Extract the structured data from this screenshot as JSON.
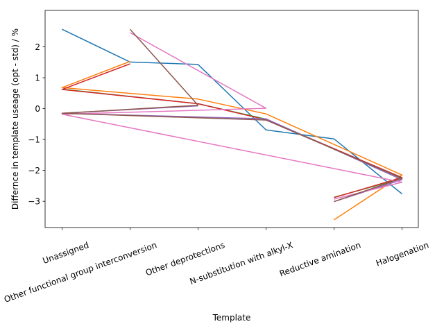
{
  "chart_data": {
    "type": "line",
    "xlabel": "Template",
    "ylabel": "Differnce in template useage (opt - std) / %",
    "categories": [
      "Unassigned",
      "Other functional group interconversion",
      "Other deprotections",
      "N-substitution with alkyl-X",
      "Reductive amination",
      "Halogenation"
    ],
    "ylim": [
      -3.85,
      3.18
    ],
    "yticks": [
      -3,
      -2,
      -1,
      0,
      1,
      2
    ],
    "ytick_labels": [
      "−3",
      "−2",
      "−1",
      "0",
      "1",
      "2"
    ],
    "grid": false,
    "series": [
      {
        "color": "#1f77b4",
        "points": [
          [
            0,
            2.57
          ],
          [
            1,
            1.51
          ],
          [
            2,
            1.43
          ],
          [
            3,
            -0.69
          ],
          [
            4,
            -0.98
          ],
          [
            5,
            -2.76
          ]
        ]
      },
      {
        "color": "#ff7f0e",
        "points": [
          [
            1,
            1.53
          ],
          [
            0,
            0.68
          ],
          [
            2,
            0.31
          ],
          [
            3,
            -0.17
          ],
          [
            5,
            -2.15
          ],
          [
            4,
            -3.6
          ]
        ]
      },
      {
        "color": "#2ca02c",
        "points": [
          [
            0,
            0.63
          ],
          [
            2,
            0.16
          ],
          [
            3,
            -0.34
          ],
          [
            5,
            -2.26
          ],
          [
            4,
            -2.87
          ]
        ]
      },
      {
        "color": "#d62728",
        "points": [
          [
            1,
            1.45
          ],
          [
            0,
            0.62
          ],
          [
            2,
            0.16
          ],
          [
            3,
            -0.36
          ],
          [
            5,
            -2.23
          ],
          [
            4,
            -2.88
          ]
        ]
      },
      {
        "color": "#9467bd",
        "points": [
          [
            2,
            0.09
          ],
          [
            0,
            -0.15
          ],
          [
            3,
            -0.33
          ],
          [
            5,
            -2.3
          ],
          [
            4,
            -3.01
          ]
        ]
      },
      {
        "color": "#e377c2",
        "points": [
          [
            1,
            2.46
          ],
          [
            3,
            0.01
          ],
          [
            0,
            -0.18
          ],
          [
            5,
            -2.38
          ],
          [
            4,
            -2.93
          ]
        ]
      },
      {
        "color": "#8c564b",
        "points": [
          [
            1,
            2.57
          ],
          [
            2,
            0.11
          ],
          [
            0,
            -0.15
          ],
          [
            3,
            -0.37
          ],
          [
            5,
            -2.25
          ],
          [
            4,
            -3.01
          ]
        ]
      }
    ]
  }
}
